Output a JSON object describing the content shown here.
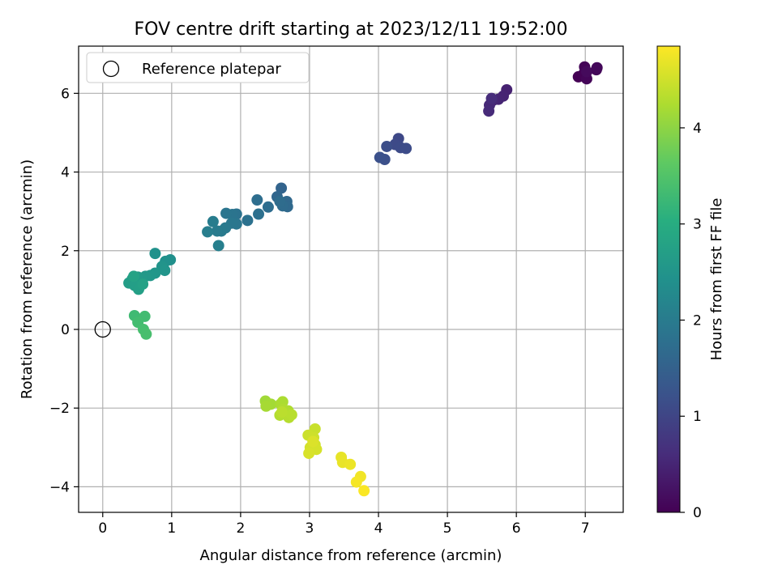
{
  "chart_data": {
    "type": "scatter",
    "title": "FOV centre drift starting at 2023/12/11 19:52:00",
    "xlabel": "Angular distance from reference (arcmin)",
    "ylabel": "Rotation from reference (arcmin)",
    "xlim": [
      -0.35,
      7.55
    ],
    "ylim": [
      -4.65,
      7.2
    ],
    "x_ticks": [
      "0",
      "1",
      "2",
      "3",
      "4",
      "5",
      "6",
      "7"
    ],
    "y_ticks": [
      "−4",
      "−2",
      "0",
      "2",
      "4",
      "6"
    ],
    "grid": true,
    "legend": {
      "position": "top-left",
      "label": "Reference platepar"
    },
    "reference_point": {
      "x": 0,
      "y": 0,
      "marker": "open-circle",
      "color": "#000000"
    },
    "colorbar": {
      "label": "Hours from first FF file",
      "range": [
        0,
        4.85
      ],
      "ticks": [
        "0",
        "1",
        "2",
        "3",
        "4"
      ],
      "colormap": "viridis"
    },
    "points": [
      {
        "x": 6.9,
        "y": 6.42,
        "t": 0.0
      },
      {
        "x": 6.97,
        "y": 6.48,
        "t": 0.02
      },
      {
        "x": 6.99,
        "y": 6.67,
        "t": 0.04
      },
      {
        "x": 7.02,
        "y": 6.37,
        "t": 0.06
      },
      {
        "x": 7.16,
        "y": 6.6,
        "t": 0.08
      },
      {
        "x": 7.17,
        "y": 6.65,
        "t": 0.1
      },
      {
        "x": 7.02,
        "y": 6.55,
        "t": 0.12
      },
      {
        "x": 5.86,
        "y": 6.09,
        "t": 0.45
      },
      {
        "x": 5.81,
        "y": 5.93,
        "t": 0.48
      },
      {
        "x": 5.74,
        "y": 5.85,
        "t": 0.5
      },
      {
        "x": 5.66,
        "y": 5.82,
        "t": 0.52
      },
      {
        "x": 5.61,
        "y": 5.7,
        "t": 0.55
      },
      {
        "x": 5.6,
        "y": 5.55,
        "t": 0.58
      },
      {
        "x": 5.64,
        "y": 5.87,
        "t": 0.6
      },
      {
        "x": 4.29,
        "y": 4.85,
        "t": 1.05
      },
      {
        "x": 4.24,
        "y": 4.7,
        "t": 1.08
      },
      {
        "x": 4.32,
        "y": 4.62,
        "t": 1.1
      },
      {
        "x": 4.4,
        "y": 4.6,
        "t": 1.12
      },
      {
        "x": 4.12,
        "y": 4.65,
        "t": 1.15
      },
      {
        "x": 4.09,
        "y": 4.32,
        "t": 1.18
      },
      {
        "x": 4.02,
        "y": 4.37,
        "t": 1.2
      },
      {
        "x": 2.59,
        "y": 3.59,
        "t": 1.55
      },
      {
        "x": 2.53,
        "y": 3.37,
        "t": 1.6
      },
      {
        "x": 2.67,
        "y": 3.25,
        "t": 1.62
      },
      {
        "x": 2.68,
        "y": 3.12,
        "t": 1.65
      },
      {
        "x": 2.61,
        "y": 3.14,
        "t": 1.68
      },
      {
        "x": 2.57,
        "y": 3.25,
        "t": 1.7
      },
      {
        "x": 2.4,
        "y": 3.11,
        "t": 1.72
      },
      {
        "x": 2.24,
        "y": 3.29,
        "t": 1.75
      },
      {
        "x": 2.26,
        "y": 2.93,
        "t": 1.78
      },
      {
        "x": 2.1,
        "y": 2.77,
        "t": 1.8
      },
      {
        "x": 1.94,
        "y": 2.93,
        "t": 1.82
      },
      {
        "x": 1.88,
        "y": 2.92,
        "t": 1.85
      },
      {
        "x": 1.79,
        "y": 2.95,
        "t": 1.88
      },
      {
        "x": 1.94,
        "y": 2.68,
        "t": 1.9
      },
      {
        "x": 1.87,
        "y": 2.7,
        "t": 1.92
      },
      {
        "x": 1.78,
        "y": 2.58,
        "t": 1.95
      },
      {
        "x": 1.72,
        "y": 2.5,
        "t": 1.98
      },
      {
        "x": 1.66,
        "y": 2.5,
        "t": 2.0
      },
      {
        "x": 1.6,
        "y": 2.74,
        "t": 2.02
      },
      {
        "x": 1.52,
        "y": 2.48,
        "t": 2.05
      },
      {
        "x": 1.68,
        "y": 2.13,
        "t": 2.08
      },
      {
        "x": 0.98,
        "y": 1.77,
        "t": 2.4
      },
      {
        "x": 0.91,
        "y": 1.73,
        "t": 2.43
      },
      {
        "x": 0.76,
        "y": 1.93,
        "t": 2.45
      },
      {
        "x": 0.86,
        "y": 1.6,
        "t": 2.48
      },
      {
        "x": 0.9,
        "y": 1.5,
        "t": 2.5
      },
      {
        "x": 0.76,
        "y": 1.43,
        "t": 2.53
      },
      {
        "x": 0.69,
        "y": 1.37,
        "t": 2.55
      },
      {
        "x": 0.62,
        "y": 1.35,
        "t": 2.58
      },
      {
        "x": 0.57,
        "y": 1.28,
        "t": 2.6
      },
      {
        "x": 0.51,
        "y": 1.33,
        "t": 2.62
      },
      {
        "x": 0.43,
        "y": 1.28,
        "t": 2.65
      },
      {
        "x": 0.38,
        "y": 1.18,
        "t": 2.68
      },
      {
        "x": 0.46,
        "y": 1.12,
        "t": 2.7
      },
      {
        "x": 0.52,
        "y": 1.02,
        "t": 2.72
      },
      {
        "x": 0.58,
        "y": 1.15,
        "t": 2.75
      },
      {
        "x": 0.45,
        "y": 1.35,
        "t": 2.78
      },
      {
        "x": 0.46,
        "y": 0.35,
        "t": 3.3
      },
      {
        "x": 0.61,
        "y": 0.33,
        "t": 3.33
      },
      {
        "x": 0.51,
        "y": 0.18,
        "t": 3.35
      },
      {
        "x": 0.59,
        "y": 0.0,
        "t": 3.38
      },
      {
        "x": 0.63,
        "y": -0.12,
        "t": 3.4
      },
      {
        "x": 2.36,
        "y": -1.82,
        "t": 4.15
      },
      {
        "x": 2.44,
        "y": -1.9,
        "t": 4.17
      },
      {
        "x": 2.37,
        "y": -1.95,
        "t": 4.19
      },
      {
        "x": 2.58,
        "y": -1.9,
        "t": 4.21
      },
      {
        "x": 2.61,
        "y": -1.84,
        "t": 4.23
      },
      {
        "x": 2.69,
        "y": -2.07,
        "t": 4.25
      },
      {
        "x": 2.62,
        "y": -2.03,
        "t": 4.27
      },
      {
        "x": 2.57,
        "y": -2.18,
        "t": 4.29
      },
      {
        "x": 2.7,
        "y": -2.24,
        "t": 4.31
      },
      {
        "x": 2.74,
        "y": -2.17,
        "t": 4.33
      },
      {
        "x": 2.6,
        "y": -2.1,
        "t": 4.35
      },
      {
        "x": 3.08,
        "y": -2.53,
        "t": 4.45
      },
      {
        "x": 2.98,
        "y": -2.69,
        "t": 4.47
      },
      {
        "x": 3.06,
        "y": -2.75,
        "t": 4.49
      },
      {
        "x": 3.08,
        "y": -2.93,
        "t": 4.51
      },
      {
        "x": 3.01,
        "y": -3.0,
        "t": 4.53
      },
      {
        "x": 3.1,
        "y": -3.05,
        "t": 4.55
      },
      {
        "x": 2.99,
        "y": -3.15,
        "t": 4.57
      },
      {
        "x": 3.05,
        "y": -2.85,
        "t": 4.59
      },
      {
        "x": 3.46,
        "y": -3.25,
        "t": 4.68
      },
      {
        "x": 3.48,
        "y": -3.38,
        "t": 4.7
      },
      {
        "x": 3.59,
        "y": -3.43,
        "t": 4.72
      },
      {
        "x": 3.74,
        "y": -3.74,
        "t": 4.76
      },
      {
        "x": 3.68,
        "y": -3.88,
        "t": 4.79
      },
      {
        "x": 3.79,
        "y": -4.1,
        "t": 4.83
      }
    ]
  }
}
